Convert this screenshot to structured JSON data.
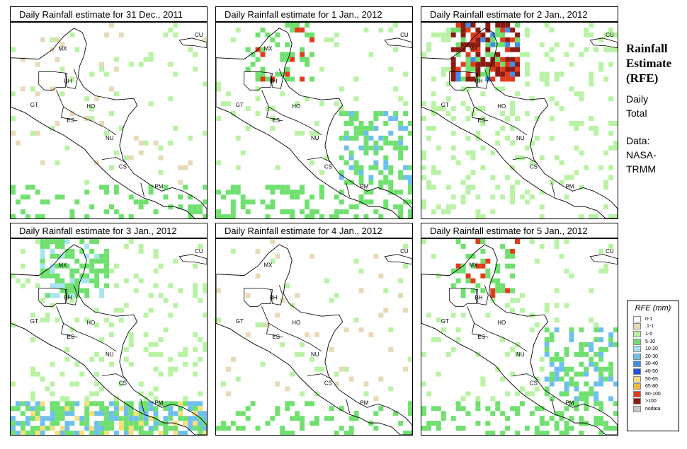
{
  "panels": [
    {
      "title": "Daily Rainfall estimate for  31 Dec., 2011",
      "intensity": "light"
    },
    {
      "title": "Daily Rainfall estimate for  1 Jan., 2012",
      "intensity": "moderate"
    },
    {
      "title": "Daily Rainfall estimate for  2 Jan., 2012",
      "intensity": "heavy"
    },
    {
      "title": "Daily Rainfall estimate for  3 Jan., 2012",
      "intensity": "widespread"
    },
    {
      "title": "Daily Rainfall estimate for  4 Jan., 2012",
      "intensity": "light"
    },
    {
      "title": "Daily Rainfall estimate for  5 Jan., 2012",
      "intensity": "moderate"
    }
  ],
  "country_labels": [
    "MX",
    "BH",
    "GT",
    "HO",
    "ES",
    "NU",
    "CS",
    "PM",
    "CU"
  ],
  "side": {
    "title_line1": "Rainfall",
    "title_line2": "Estimate",
    "title_line3": "(RFE)",
    "daily": "Daily",
    "total": "Total",
    "data_label": "Data:",
    "source_1": "NASA-",
    "source_2": "TRMM"
  },
  "legend": {
    "title": "RFE (mm)",
    "items": [
      {
        "label": "0-1",
        "color": "#ffffff"
      },
      {
        "label": ".1-1",
        "color": "#e8d9b8"
      },
      {
        "label": "1-5",
        "color": "#b9f2a4"
      },
      {
        "label": "5-10",
        "color": "#6fe06f"
      },
      {
        "label": "10-20",
        "color": "#a8e4f2"
      },
      {
        "label": "20-30",
        "color": "#6fbfee"
      },
      {
        "label": "30-40",
        "color": "#3e8fe6"
      },
      {
        "label": "40-50",
        "color": "#1f55d8"
      },
      {
        "label": "50-65",
        "color": "#f6e07a"
      },
      {
        "label": "65-80",
        "color": "#f3b63d"
      },
      {
        "label": "80-100",
        "color": "#e23b1a"
      },
      {
        "label": ">100",
        "color": "#8c1a12"
      },
      {
        "label": "nodata",
        "color": "#c8c8c8"
      }
    ]
  }
}
